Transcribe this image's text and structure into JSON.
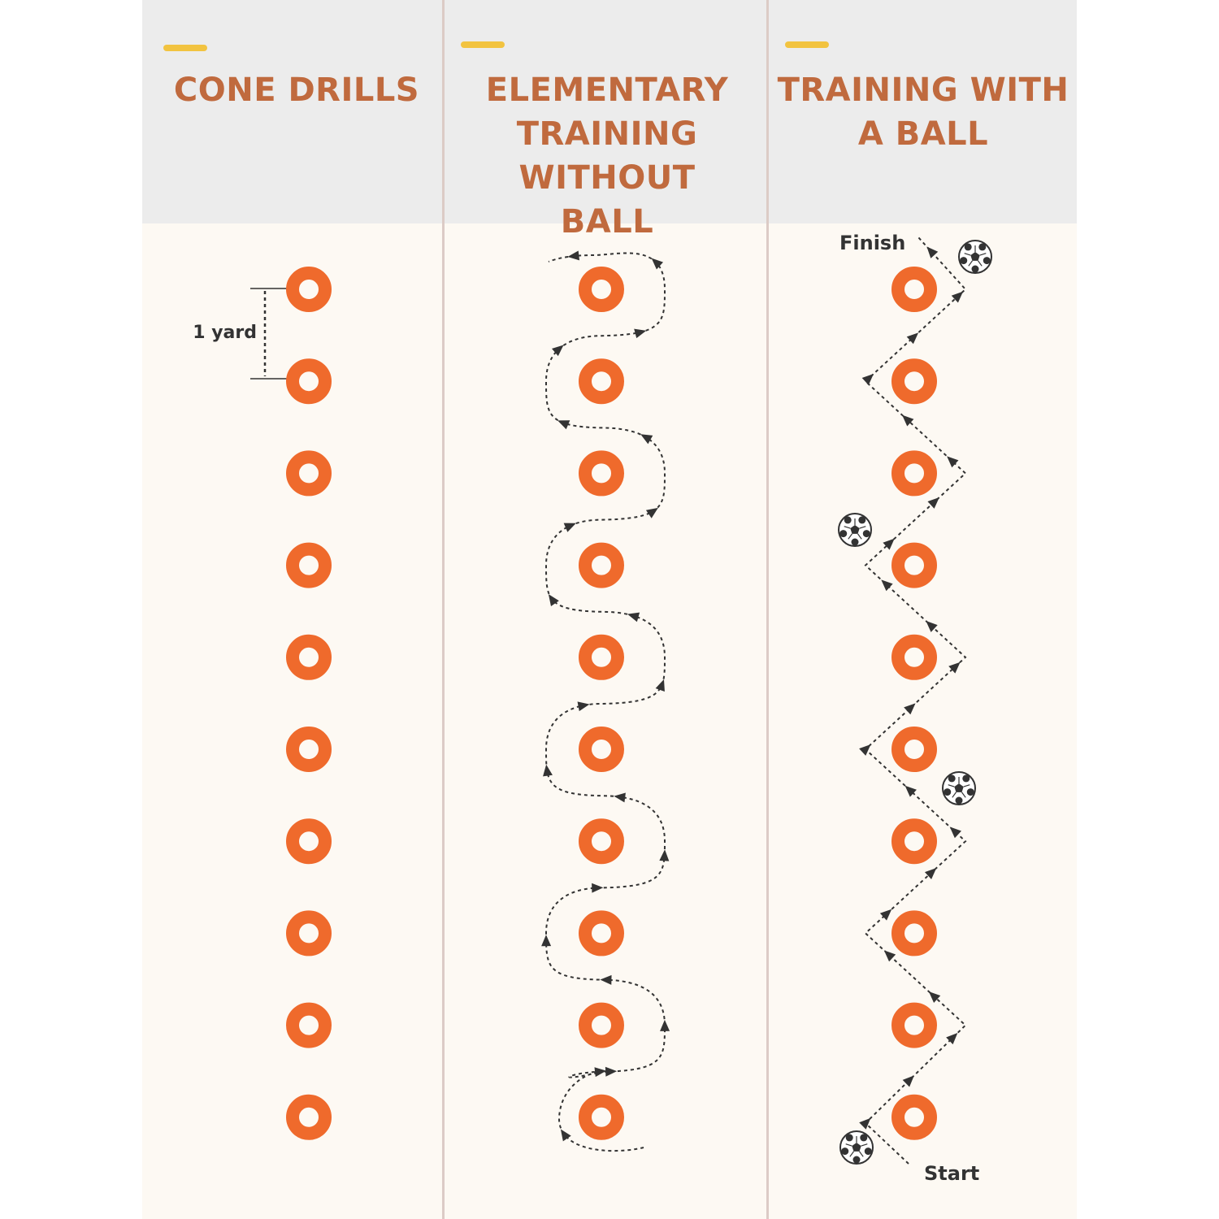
{
  "columns": [
    {
      "title": "CONE DRILLS",
      "distance_label": "1 yard"
    },
    {
      "title": "ELEMENTARY TRAINING WITHOUT BALL"
    },
    {
      "title": "TRAINING WITH A BALL",
      "finish_label": "Finish",
      "start_label": "Start"
    }
  ],
  "cones_per_column": 10,
  "colors": {
    "cone": "#ef6a2c",
    "title": "#c06a3e",
    "accent_bar": "#f2c340",
    "header_bg": "#ececec",
    "body_bg": "#fdf9f3",
    "path": "#333333"
  }
}
